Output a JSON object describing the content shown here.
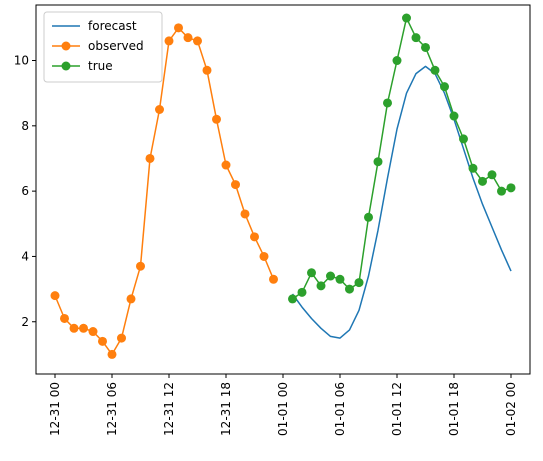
{
  "chart_data": {
    "type": "line",
    "title": "",
    "xlabel": "",
    "ylabel": "",
    "x_range": [
      "2022-12-30 22:00",
      "2023-01-02 02:00"
    ],
    "ylim": [
      0.4,
      11.7
    ],
    "grid": false,
    "legend_position": "top-left",
    "y_ticks": [
      2,
      4,
      6,
      8,
      10
    ],
    "x_ticks": [
      {
        "t": "2022-12-31 00:00",
        "label": "12-31 00"
      },
      {
        "t": "2022-12-31 06:00",
        "label": "12-31 06"
      },
      {
        "t": "2022-12-31 12:00",
        "label": "12-31 12"
      },
      {
        "t": "2022-12-31 18:00",
        "label": "12-31 18"
      },
      {
        "t": "2023-01-01 00:00",
        "label": "01-01 00"
      },
      {
        "t": "2023-01-01 06:00",
        "label": "01-01 06"
      },
      {
        "t": "2023-01-01 12:00",
        "label": "01-01 12"
      },
      {
        "t": "2023-01-01 18:00",
        "label": "01-01 18"
      },
      {
        "t": "2023-01-02 00:00",
        "label": "01-02 00"
      }
    ],
    "series": [
      {
        "name": "forecast",
        "color": "#1f77b4",
        "marker": "none",
        "x": [
          "2023-01-01 01:00",
          "2023-01-01 02:00",
          "2023-01-01 03:00",
          "2023-01-01 04:00",
          "2023-01-01 05:00",
          "2023-01-01 06:00",
          "2023-01-01 07:00",
          "2023-01-01 08:00",
          "2023-01-01 09:00",
          "2023-01-01 10:00",
          "2023-01-01 11:00",
          "2023-01-01 12:00",
          "2023-01-01 13:00",
          "2023-01-01 14:00",
          "2023-01-01 15:00",
          "2023-01-01 16:00",
          "2023-01-01 17:00",
          "2023-01-01 18:00",
          "2023-01-01 19:00",
          "2023-01-01 20:00",
          "2023-01-01 21:00",
          "2023-01-01 22:00",
          "2023-01-01 23:00",
          "2023-01-02 00:00"
        ],
        "y": [
          2.85,
          2.45,
          2.1,
          1.8,
          1.55,
          1.5,
          1.75,
          2.35,
          3.4,
          4.8,
          6.4,
          7.9,
          9.0,
          9.6,
          9.82,
          9.6,
          9.0,
          8.2,
          7.3,
          6.4,
          5.6,
          4.9,
          4.2,
          3.55
        ]
      },
      {
        "name": "observed",
        "color": "#ff7f0e",
        "marker": "circle",
        "x": [
          "2022-12-31 00:00",
          "2022-12-31 01:00",
          "2022-12-31 02:00",
          "2022-12-31 03:00",
          "2022-12-31 04:00",
          "2022-12-31 05:00",
          "2022-12-31 06:00",
          "2022-12-31 07:00",
          "2022-12-31 08:00",
          "2022-12-31 09:00",
          "2022-12-31 10:00",
          "2022-12-31 11:00",
          "2022-12-31 12:00",
          "2022-12-31 13:00",
          "2022-12-31 14:00",
          "2022-12-31 15:00",
          "2022-12-31 16:00",
          "2022-12-31 17:00",
          "2022-12-31 18:00",
          "2022-12-31 19:00",
          "2022-12-31 20:00",
          "2022-12-31 21:00",
          "2022-12-31 22:00",
          "2022-12-31 23:00",
          "2023-01-01 00:00"
        ],
        "y": [
          2.8,
          2.1,
          1.8,
          1.8,
          1.7,
          1.4,
          1.0,
          1.5,
          2.7,
          3.7,
          7.0,
          8.5,
          10.6,
          11.0,
          10.7,
          10.6,
          9.7,
          8.2,
          6.8,
          6.2,
          5.3,
          4.6,
          4.0,
          3.3,
          null
        ]
      },
      {
        "name": "true",
        "color": "#2ca02c",
        "marker": "circle",
        "x": [
          "2023-01-01 01:00",
          "2023-01-01 02:00",
          "2023-01-01 03:00",
          "2023-01-01 04:00",
          "2023-01-01 05:00",
          "2023-01-01 06:00",
          "2023-01-01 07:00",
          "2023-01-01 08:00",
          "2023-01-01 09:00",
          "2023-01-01 10:00",
          "2023-01-01 11:00",
          "2023-01-01 12:00",
          "2023-01-01 13:00",
          "2023-01-01 14:00",
          "2023-01-01 15:00",
          "2023-01-01 16:00",
          "2023-01-01 17:00",
          "2023-01-01 18:00",
          "2023-01-01 19:00",
          "2023-01-01 20:00",
          "2023-01-01 21:00",
          "2023-01-01 22:00",
          "2023-01-01 23:00",
          "2023-01-02 00:00"
        ],
        "y": [
          2.7,
          2.9,
          3.5,
          3.1,
          3.4,
          3.3,
          3.0,
          3.2,
          5.2,
          6.9,
          8.7,
          10.0,
          11.3,
          10.7,
          10.4,
          9.7,
          9.2,
          8.3,
          7.6,
          6.7,
          6.3,
          6.5,
          6.0,
          6.1
        ]
      }
    ]
  }
}
